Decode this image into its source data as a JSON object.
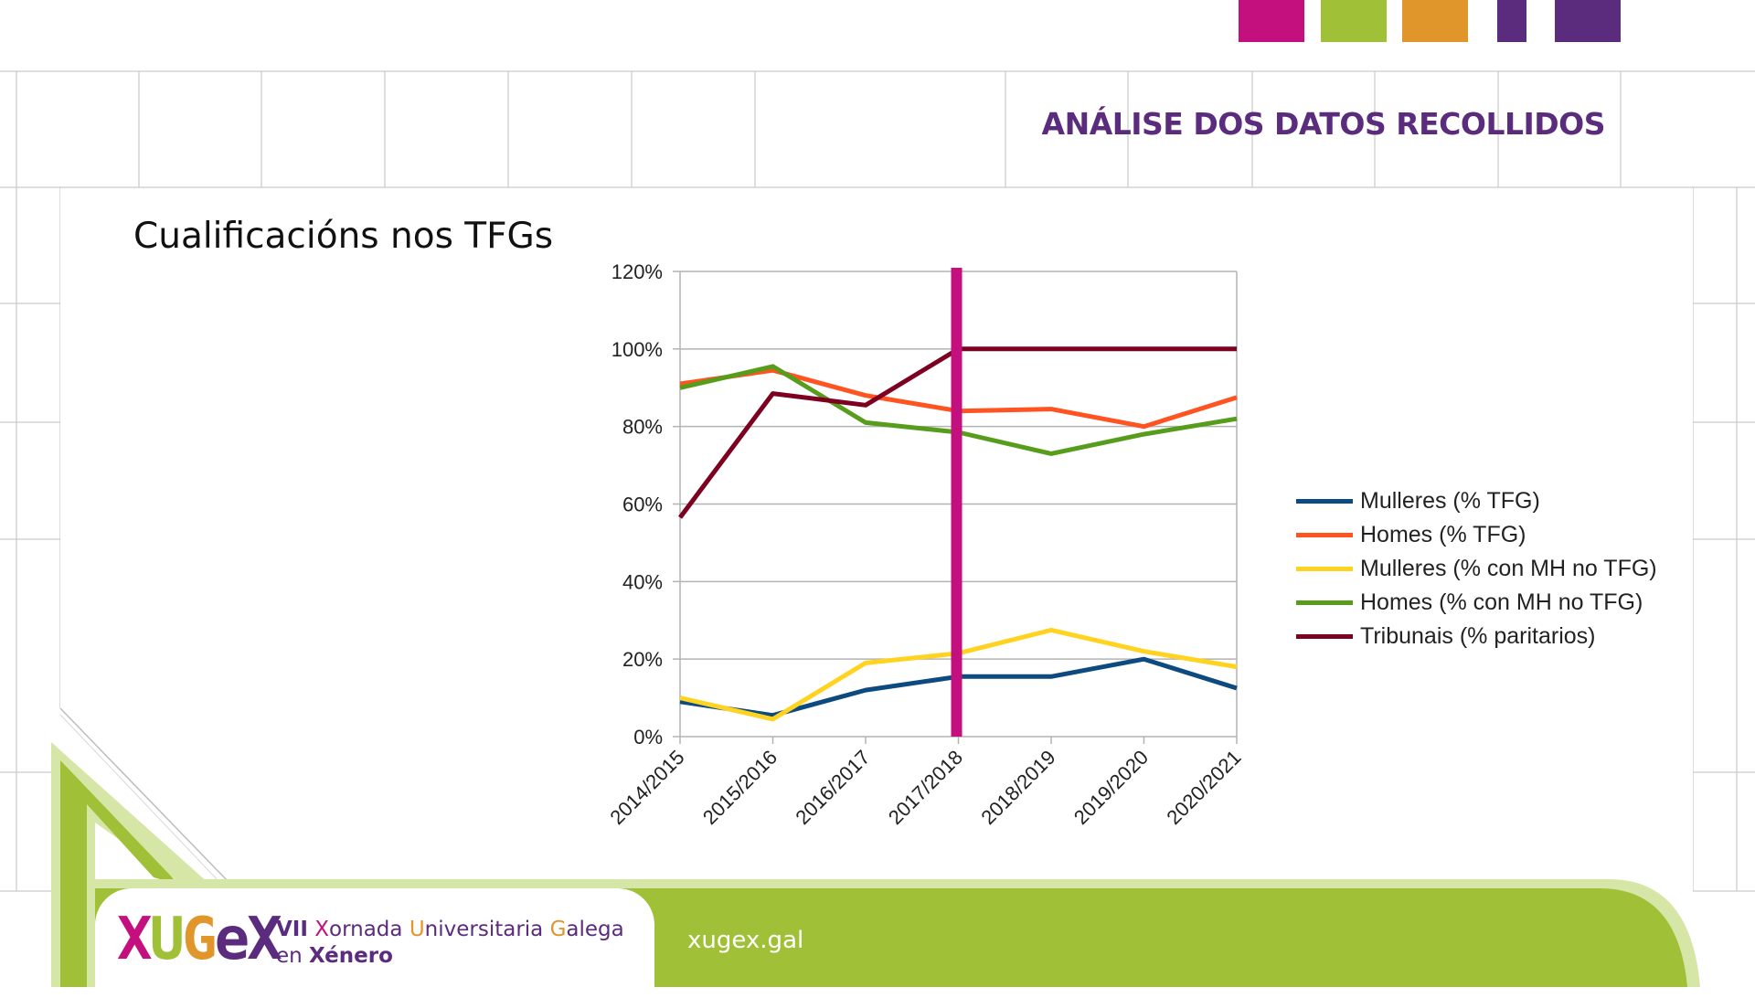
{
  "header": {
    "section_title": "ANÁLISE DOS DATOS RECOLLIDOS",
    "accent_colors": [
      "#c4107e",
      "#a0c037",
      "#e0962a",
      "#5b2b7e",
      "#5b2b7e"
    ]
  },
  "slide": {
    "title": "Cualificacións nos TFGs"
  },
  "chart_data": {
    "type": "line",
    "title": "",
    "xlabel": "",
    "ylabel": "",
    "categories": [
      "2014/2015",
      "2015/2016",
      "2016/2017",
      "2017/2018",
      "2018/2019",
      "2019/2020",
      "2020/2021"
    ],
    "yticks": [
      "0%",
      "20%",
      "40%",
      "60%",
      "80%",
      "100%",
      "120%"
    ],
    "ylim": [
      0,
      120
    ],
    "grid": true,
    "legend_position": "right",
    "marker_category": "2017/2018",
    "marker_color": "#c4107e",
    "series": [
      {
        "name": "Mulleres (% TFG)",
        "color": "#0d4a80",
        "values": [
          9,
          5.5,
          12,
          15.5,
          15.5,
          20,
          12.5
        ]
      },
      {
        "name": "Homes (% TFG)",
        "color": "#ff5421",
        "values": [
          91,
          94.5,
          88,
          84,
          84.5,
          80,
          87.5
        ]
      },
      {
        "name": "Mulleres (% con MH no TFG)",
        "color": "#ffd320",
        "values": [
          10,
          4.5,
          19,
          21.5,
          27.5,
          22,
          18
        ]
      },
      {
        "name": "Homes (% con MH no TFG)",
        "color": "#579d1c",
        "values": [
          90,
          95.5,
          81,
          78.5,
          73,
          78,
          82
        ]
      },
      {
        "name": "Tribunais (% paritarios)",
        "color": "#7e0021",
        "values": [
          56.5,
          88.5,
          85.5,
          100,
          100,
          100,
          100
        ]
      }
    ]
  },
  "footer": {
    "logo": "XUGeX",
    "logo_colors": [
      "#c4107e",
      "#a0c037",
      "#e0962a",
      "#5b2b7e",
      "#5b2b7e"
    ],
    "event_line1": "VII Xornada Universitaria Galega",
    "event_line2": "en Xénero",
    "url": "xugex.gal"
  }
}
